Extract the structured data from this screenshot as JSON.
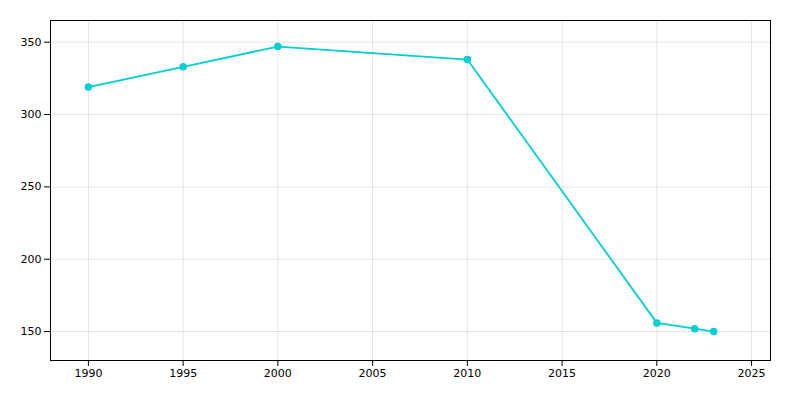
{
  "chart_data": {
    "type": "line",
    "x": [
      1990,
      1995,
      2000,
      2010,
      2020,
      2022,
      2023
    ],
    "values": [
      319,
      333,
      347,
      338,
      156,
      152,
      150
    ],
    "color": "#00CED1",
    "marker": "circle",
    "xlim": [
      1988,
      2026
    ],
    "ylim": [
      130,
      365
    ],
    "xticks": [
      1990,
      1995,
      2000,
      2005,
      2010,
      2015,
      2020,
      2025
    ],
    "yticks": [
      150,
      200,
      250,
      300,
      350
    ],
    "grid": true
  }
}
